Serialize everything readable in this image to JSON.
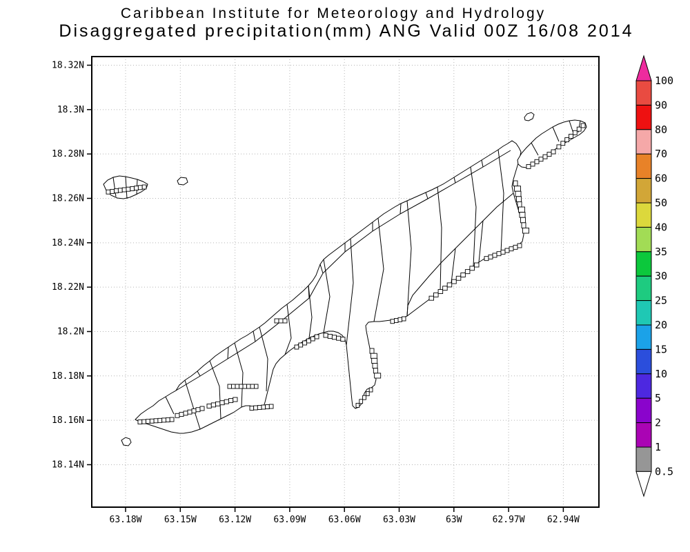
{
  "title": {
    "line1": "Caribbean Institute for Meteorology and Hydrology",
    "line2": "Disaggregated precipitation(mm) ANG Valid 00Z 16/08 2014"
  },
  "axes": {
    "lat_labels": [
      "18.32N",
      "18.3N",
      "18.28N",
      "18.26N",
      "18.24N",
      "18.22N",
      "18.2N",
      "18.18N",
      "18.16N",
      "18.14N"
    ],
    "lon_labels": [
      "63.18W",
      "63.15W",
      "63.12W",
      "63.09W",
      "63.06W",
      "63.03W",
      "63W",
      "62.97W",
      "62.94W"
    ]
  },
  "colorbar": {
    "labels": [
      "100",
      "90",
      "80",
      "70",
      "60",
      "50",
      "40",
      "35",
      "30",
      "25",
      "20",
      "15",
      "10",
      "5",
      "2",
      "1",
      "0.5"
    ],
    "over_color": "#ee2b9e",
    "band_colors": [
      "#e94b41",
      "#ee1111",
      "#f5a8a8",
      "#e88228",
      "#d2a637",
      "#dcd83c",
      "#a2dc55",
      "#0cc83c",
      "#1ecb80",
      "#1fc8b4",
      "#1ba2e8",
      "#2b4edc",
      "#4d28e0",
      "#8a04cc",
      "#aa04b4",
      "#969696"
    ],
    "under_color": "#ffffff"
  },
  "colors": {
    "grid": "#b4b4b4",
    "frame": "#000000",
    "coast": "#000000",
    "background": "#ffffff"
  },
  "chart_data": {
    "type": "heatmap",
    "title": "Caribbean Institute for Meteorology and Hydrology",
    "subtitle": "Disaggregated precipitation(mm) ANG Valid 00Z 16/08 2014",
    "region": "ANG",
    "valid_time": "00Z 16/08 2014",
    "units": "mm",
    "x": {
      "label": "longitude",
      "ticks": [
        "63.18W",
        "63.15W",
        "63.12W",
        "63.09W",
        "63.06W",
        "63.03W",
        "63W",
        "62.97W",
        "62.94W"
      ],
      "range_west_to_east": [
        -63.2,
        -62.92
      ]
    },
    "y": {
      "label": "latitude",
      "ticks": [
        "18.32N",
        "18.3N",
        "18.28N",
        "18.26N",
        "18.24N",
        "18.22N",
        "18.2N",
        "18.18N",
        "18.16N",
        "18.14N"
      ],
      "range_south_to_north": [
        18.12,
        18.324
      ]
    },
    "grid": true,
    "legend_position": "right",
    "colorscale_levels_mm": [
      0.5,
      1,
      2,
      5,
      10,
      15,
      20,
      25,
      30,
      35,
      40,
      50,
      60,
      70,
      80,
      90,
      100
    ],
    "values_plotted": "none above 0.5 mm (map shows only basin outlines, no shaded precipitation cells)"
  }
}
